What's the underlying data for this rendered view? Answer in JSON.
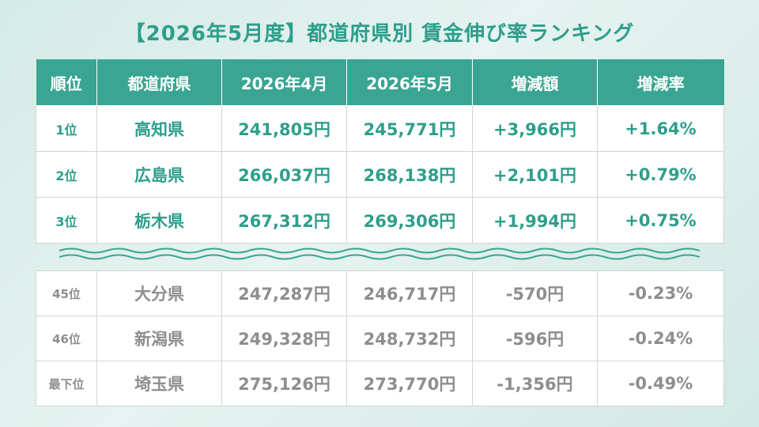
{
  "title": "【2026年5月度】都道府県別 賃金伸び率ランキング",
  "headers": [
    "順位",
    "都道府県",
    "2026年4月",
    "2026年5月",
    "増減額",
    "増減率"
  ],
  "top_rows": [
    {
      "rank": "1位",
      "pref": "高知県",
      "apr": "241,805円",
      "may": "245,771円",
      "diff": "+3,966円",
      "rate": "+1.64%"
    },
    {
      "rank": "2位",
      "pref": "広島県",
      "apr": "266,037円",
      "may": "268,138円",
      "diff": "+2,101円",
      "rate": "+0.79%"
    },
    {
      "rank": "3位",
      "pref": "栃木県",
      "apr": "267,312円",
      "may": "269,306円",
      "diff": "+1,994円",
      "rate": "+0.75%"
    }
  ],
  "bottom_rows": [
    {
      "rank": "45位",
      "pref": "大分県",
      "apr": "247,287円",
      "may": "246,717円",
      "diff": "-570円",
      "rate": "-0.23%"
    },
    {
      "rank": "46位",
      "pref": "新潟県",
      "apr": "249,328円",
      "may": "248,732円",
      "diff": "-596円",
      "rate": "-0.24%"
    },
    {
      "rank": "最下位",
      "pref": "埼玉県",
      "apr": "275,126円",
      "may": "273,770円",
      "diff": "-1,356円",
      "rate": "-0.49%"
    }
  ],
  "colors": {
    "accent": "#3aa593",
    "accent_text": "#2e9e8c",
    "muted_text": "#8e8e8e",
    "background": "#d4ebe6"
  },
  "icons": {
    "separator": "wavy-line-separator"
  }
}
